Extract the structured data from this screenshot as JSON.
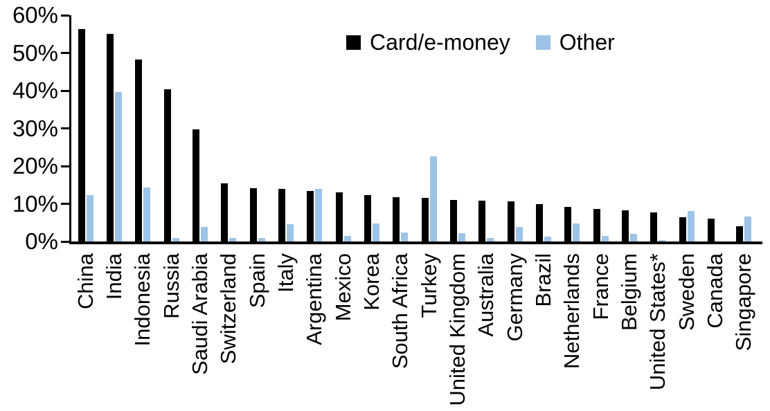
{
  "chart_data": {
    "type": "bar",
    "title": "",
    "categories": [
      "China",
      "India",
      "Indonesia",
      "Russia",
      "Saudi Arabia",
      "Switzerland",
      "Spain",
      "Italy",
      "Argentina",
      "Mexico",
      "Korea",
      "South Africa",
      "Turkey",
      "United Kingdom",
      "Australia",
      "Germany",
      "Brazil",
      "Netherlands",
      "France",
      "Belgium",
      "United States*",
      "Sweden",
      "Canada",
      "Singapore"
    ],
    "series": [
      {
        "name": "Card/e-money",
        "color": "#000000",
        "values": [
          56.3,
          55.0,
          48.3,
          40.3,
          29.8,
          15.5,
          14.2,
          13.9,
          13.4,
          13.0,
          12.3,
          11.8,
          11.6,
          11.0,
          10.8,
          10.6,
          10.0,
          9.2,
          8.6,
          8.2,
          7.8,
          6.5,
          6.0,
          4.0
        ]
      },
      {
        "name": "Other",
        "color": "#9DC3E6",
        "values": [
          12.3,
          39.6,
          14.4,
          1.0,
          3.8,
          0.9,
          1.0,
          4.5,
          13.9,
          1.5,
          4.7,
          2.4,
          22.5,
          2.2,
          1.0,
          3.8,
          1.2,
          4.7,
          1.5,
          2.0,
          0.3,
          8.0,
          0.0,
          6.7
        ]
      }
    ],
    "xlabel": "",
    "ylabel": "",
    "ylim": [
      0,
      60
    ],
    "ytick_step": 10,
    "ytick_labels": [
      "0%",
      "10%",
      "20%",
      "30%",
      "40%",
      "50%",
      "60%"
    ],
    "grid": "off",
    "legend_position": "top-center"
  },
  "colors": {
    "axis": "#000000",
    "bar_card": "#000000",
    "bar_other": "#9DC3E6"
  }
}
